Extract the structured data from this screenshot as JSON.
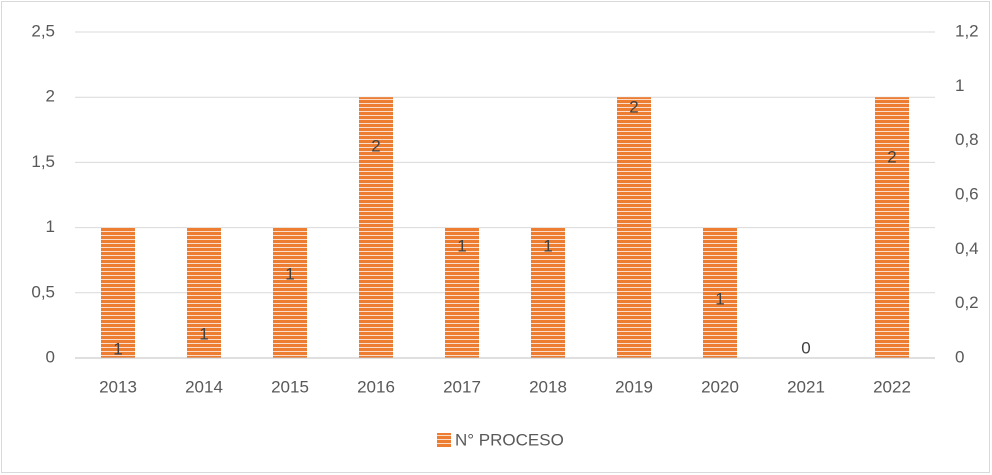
{
  "chart_data": {
    "type": "bar",
    "categories": [
      "2013",
      "2014",
      "2015",
      "2016",
      "2017",
      "2018",
      "2019",
      "2020",
      "2021",
      "2022"
    ],
    "series": [
      {
        "name": "N° PROCESO",
        "color": "#ED7D31",
        "values": [
          1,
          1,
          1,
          2,
          1,
          1,
          2,
          1,
          0,
          2
        ]
      }
    ],
    "ylim": [
      0,
      2.5
    ],
    "yticks": [
      0,
      {
        "value": 0.5,
        "label": "0,5"
      },
      1,
      {
        "value": 1.5,
        "label": "1,5"
      },
      2,
      {
        "value": 2.5,
        "label": "2,5"
      }
    ],
    "y2lim": [
      0,
      1.2
    ],
    "y2ticks": [
      0,
      {
        "value": 0.2,
        "label": "0,2"
      },
      {
        "value": 0.4,
        "label": "0,4"
      },
      {
        "value": 0.6,
        "label": "0,6"
      },
      {
        "value": 0.8,
        "label": "0,8"
      },
      1,
      {
        "value": 1.2,
        "label": "1,2"
      }
    ],
    "grid": true,
    "legend": "bottom"
  }
}
